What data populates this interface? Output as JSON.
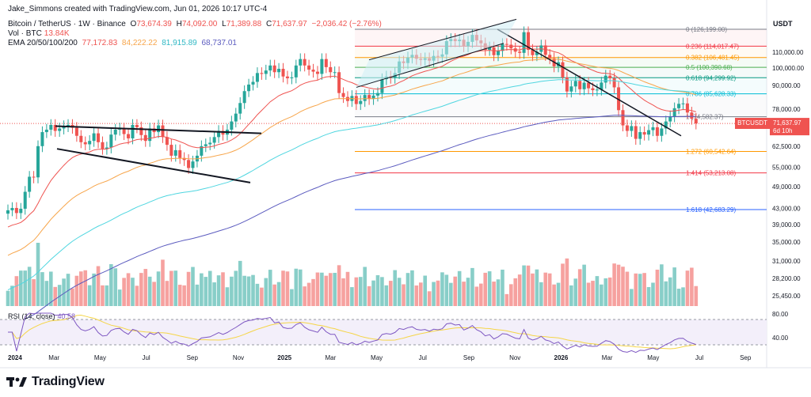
{
  "header": {
    "attribution": "Jake_Simmons created with TradingView.com, Jun 01, 2026 10:17 UTC-4",
    "symbol": "Bitcoin / TetherUS · 1W · Binance",
    "o_label": "O",
    "o_value": "73,674.39",
    "h_label": "H",
    "h_value": "74,092.00",
    "l_label": "L",
    "l_value": "71,389.88",
    "c_label": "C",
    "c_value": "71,637.97",
    "change": "−2,036.42 (−2.76%)",
    "vol_label": "Vol · BTC",
    "vol_value": "13.84K",
    "ema_label": "EMA 20/50/100/200",
    "ema20": "77,172.83",
    "ema50": "84,222.22",
    "ema100": "81,915.89",
    "ema200": "68,737.01"
  },
  "colors": {
    "up": "#26a69a",
    "down": "#ef5350",
    "ema20": "#ef5350",
    "ema50": "#f7a54a",
    "ema100": "#4fd6e0",
    "ema200": "#5b5bbf",
    "rsi": "#7e57c2",
    "rsi_ma": "#f5d547"
  },
  "chart_data": {
    "type": "candlestick",
    "currency_label": "USDT",
    "y_axis_ticks": [
      "110,000.00",
      "100,000.00",
      "90,000.00",
      "78,000.00",
      "71,637.97",
      "62,500.00",
      "55,000.00",
      "49,000.00",
      "43,000.00",
      "39,000.00",
      "35,000.00",
      "31,000.00",
      "28,200.00",
      "25,450.00"
    ],
    "x_axis_ticks": [
      "2024",
      "Mar",
      "May",
      "Jul",
      "Sep",
      "Nov",
      "2025",
      "Mar",
      "May",
      "Jul",
      "Sep",
      "Nov",
      "2026",
      "Mar",
      "May",
      "Jul",
      "Sep"
    ],
    "last_price": {
      "symbol": "BTCUSDT",
      "price": "71,637.97",
      "countdown": "6d 10h"
    },
    "fibonacci": [
      {
        "label": "0 (126,199.00)",
        "value": 126199,
        "color": "#787b86"
      },
      {
        "label": "0.236 (114,017.47)",
        "value": 114017.47,
        "color": "#f23645"
      },
      {
        "label": "0.382 (106,481.45)",
        "value": 106481.45,
        "color": "#ff9800"
      },
      {
        "label": "0.5 (100,390.68)",
        "value": 100390.68,
        "color": "#4caf50"
      },
      {
        "label": "0.618 (94,299.92)",
        "value": 94299.92,
        "color": "#089981"
      },
      {
        "label": "0.786 (85,628.33)",
        "value": 85628.33,
        "color": "#00bcd4"
      },
      {
        "label": "1 (74,582.37)",
        "value": 74582.37,
        "color": "#787b86"
      },
      {
        "label": "1.272 (60,542.64)",
        "value": 60542.64,
        "color": "#ff9800"
      },
      {
        "label": "1.414 (53,213.08)",
        "value": 53213.08,
        "color": "#f23645"
      },
      {
        "label": "1.618 (42,683.29)",
        "value": 42683.29,
        "color": "#2962ff"
      }
    ],
    "weekly_close_approx": [
      42500,
      43100,
      41800,
      42900,
      47500,
      52000,
      51800,
      62500,
      68000,
      69000,
      71000,
      68500,
      69500,
      70500,
      71000,
      69800,
      66500,
      64000,
      63200,
      64500,
      67500,
      64000,
      61500,
      62000,
      67000,
      69000,
      69500,
      67200,
      65500,
      71000,
      70000,
      66800,
      64500,
      69500,
      68000,
      70800,
      66000,
      63000,
      59000,
      61000,
      58200,
      57500,
      54800,
      57000,
      59000,
      62500,
      63200,
      63800,
      66000,
      68500,
      67000,
      69000,
      72500,
      76000,
      81000,
      87000,
      90500,
      92000,
      97000,
      96500,
      98500,
      101500,
      97500,
      99500,
      95000,
      94000,
      94500,
      101500,
      105500,
      101500,
      99000,
      97800,
      96500,
      105500,
      100500,
      97500,
      97500,
      86000,
      84000,
      82000,
      84500,
      80500,
      82000,
      85000,
      83000,
      84700,
      86000,
      93500,
      95000,
      94300,
      97000,
      104000,
      103000,
      106500,
      108200,
      105700,
      105000,
      106000,
      104500,
      107500,
      107000,
      108500,
      117500,
      119000,
      117500,
      118500,
      114000,
      117000,
      122000,
      118000,
      116000,
      111500,
      113200,
      108000,
      110800,
      115500,
      115000,
      112500,
      110300,
      109500,
      124000,
      111500,
      108000,
      110200,
      114500,
      108200,
      106000,
      101000,
      103500,
      94500,
      86800,
      89500,
      92500,
      88000,
      91500,
      88500,
      87500,
      87800,
      91600,
      95500,
      94000,
      89000,
      77600,
      70800,
      68500,
      70500,
      65300,
      68000,
      67000,
      68800,
      70000,
      66500,
      69500,
      72500,
      74800,
      78500,
      80600,
      80800,
      76500,
      73700,
      71638
    ]
  },
  "rsi": {
    "label": "RSI (14, close)",
    "value": "40.58",
    "upper_tick": "80.00",
    "lower_tick": "40.00"
  },
  "brand": {
    "name": "TradingView"
  }
}
